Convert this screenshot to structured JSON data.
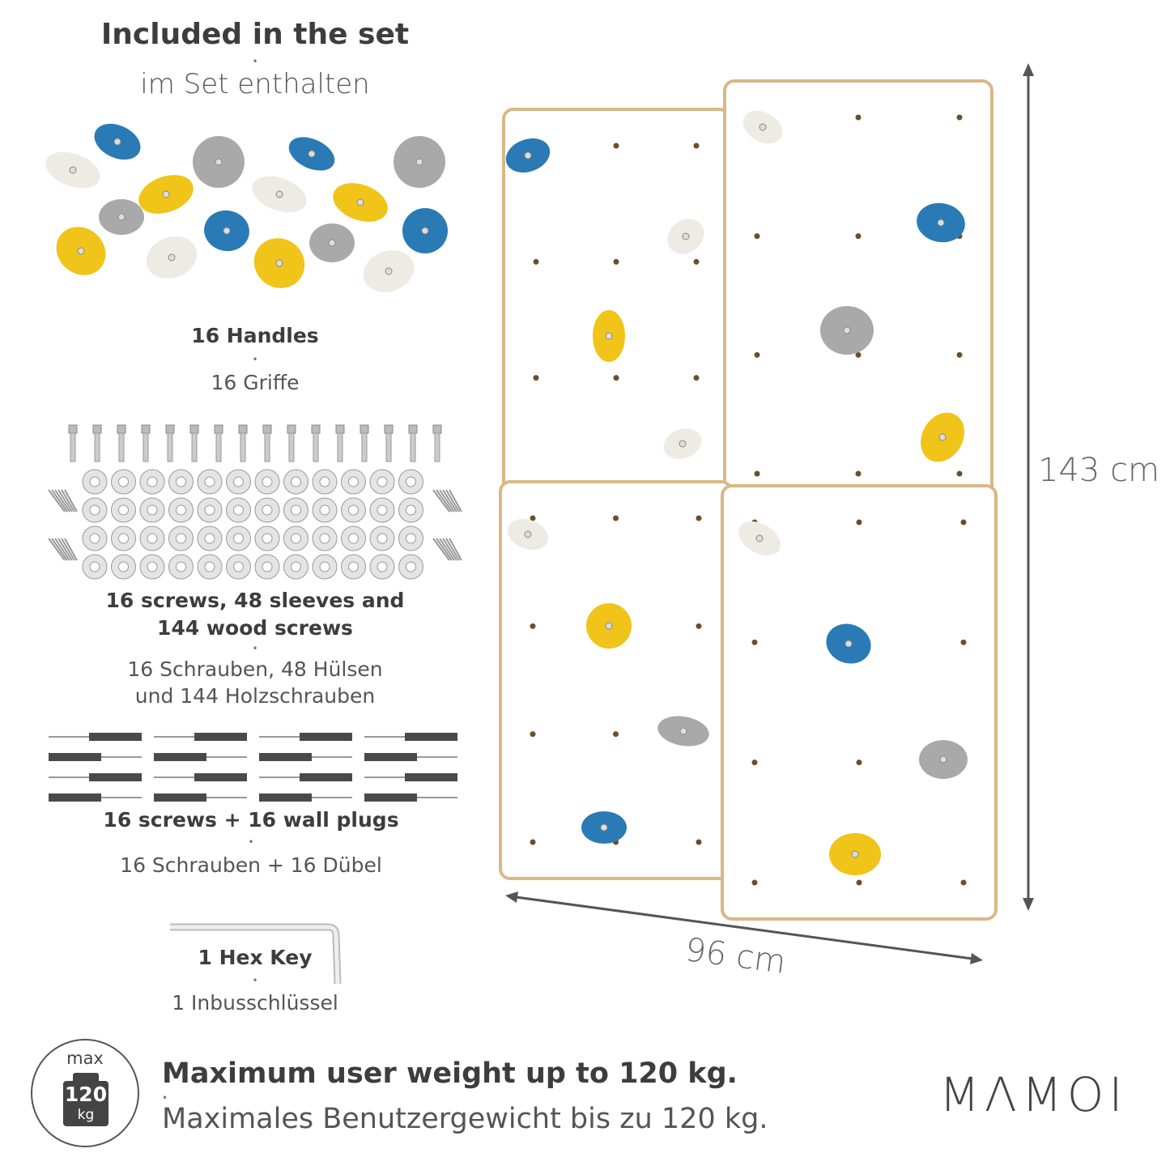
{
  "header": {
    "title_en": "Included in the set",
    "title_de": "im Set enthalten"
  },
  "items": [
    {
      "label_en": "16 Handles",
      "label_de": "16 Griffe"
    },
    {
      "label_en": "16 screws, 48 sleeves and",
      "label_en2": "144 wood screws",
      "label_de": "16 Schrauben, 48 Hülsen",
      "label_de2": "und 144 Holzschrauben"
    },
    {
      "label_en": "16 screws + 16 wall plugs",
      "label_de": "16 Schrauben + 16 Dübel"
    },
    {
      "label_en": "1 Hex Key",
      "label_de": "1 Inbusschlüssel"
    }
  ],
  "dimensions": {
    "height": "143 cm",
    "width": "96 cm"
  },
  "weight": {
    "icon_max": "max",
    "icon_value": "120",
    "icon_unit": "kg",
    "title_en": "Maximum user weight up to 120 kg.",
    "title_de": "Maximales Benutzergewicht bis zu 120 kg."
  },
  "brand": {
    "logo": "MAMOI"
  },
  "colors": {
    "blue": "#2a7ab5",
    "yellow": "#f0c419",
    "grey": "#a9a9a9",
    "white": "#eeeae4",
    "wood": "#d8b887",
    "text": "#444444"
  }
}
